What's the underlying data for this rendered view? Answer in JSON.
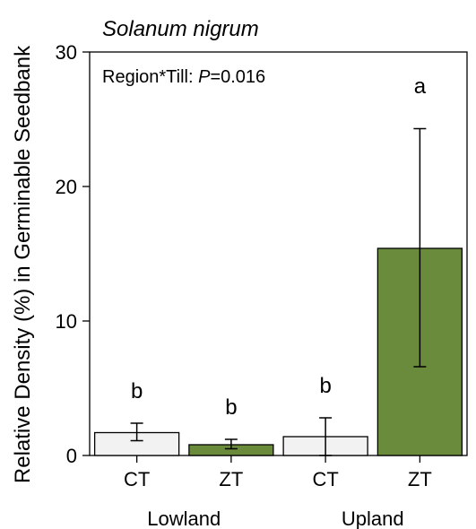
{
  "chart_data": {
    "type": "bar",
    "title": "Solanum nigrum",
    "xlabel": "",
    "ylabel": "Relative Density (%) in Germinable Seedbank",
    "ylim": [
      0,
      30
    ],
    "yticks": [
      0,
      10,
      20,
      30
    ],
    "annotation": {
      "prefix": "Region*Till: ",
      "p_symbol": "P",
      "p_value": "=0.016"
    },
    "groups": [
      "Lowland",
      "Upland"
    ],
    "categories": [
      "CT",
      "ZT",
      "CT",
      "ZT"
    ],
    "bars": [
      {
        "category": "CT",
        "group": "Lowland",
        "value": 1.7,
        "err_low": 1.1,
        "err_high": 2.4,
        "letter": "b",
        "color": "#f2f2f2"
      },
      {
        "category": "ZT",
        "group": "Lowland",
        "value": 0.8,
        "err_low": 0.5,
        "err_high": 1.2,
        "letter": "b",
        "color": "#6b8b3c"
      },
      {
        "category": "CT",
        "group": "Upland",
        "value": 1.4,
        "err_low": 0.0,
        "err_high": 2.8,
        "letter": "b",
        "color": "#f2f2f2"
      },
      {
        "category": "ZT",
        "group": "Upland",
        "value": 15.4,
        "err_low": 6.6,
        "err_high": 24.3,
        "letter": "a",
        "color": "#6b8b3c"
      }
    ],
    "colors": {
      "CT": "#f2f2f2",
      "ZT": "#6b8b3c",
      "axis": "#000000"
    },
    "grid": false,
    "legend": "none"
  }
}
